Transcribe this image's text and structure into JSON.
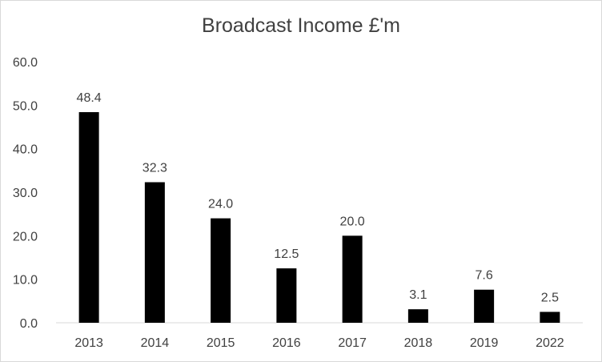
{
  "chart_data": {
    "type": "bar",
    "title": "Broadcast Income £'m",
    "categories": [
      "2013",
      "2014",
      "2015",
      "2016",
      "2017",
      "2018",
      "2019",
      "2022"
    ],
    "values": [
      48.4,
      32.3,
      24.0,
      12.5,
      20.0,
      3.1,
      7.6,
      2.5
    ],
    "value_labels": [
      "48.4",
      "32.3",
      "24.0",
      "12.5",
      "20.0",
      "3.1",
      "7.6",
      "2.5"
    ],
    "ylim": [
      0,
      60
    ],
    "yticks": [
      "0.0",
      "10.0",
      "20.0",
      "30.0",
      "40.0",
      "50.0",
      "60.0"
    ],
    "xlabel": "",
    "ylabel": "",
    "grid": false,
    "legend": "none",
    "bar_color": "#000000",
    "text_color": "#404040",
    "axis_color": "#d9d9d9"
  }
}
